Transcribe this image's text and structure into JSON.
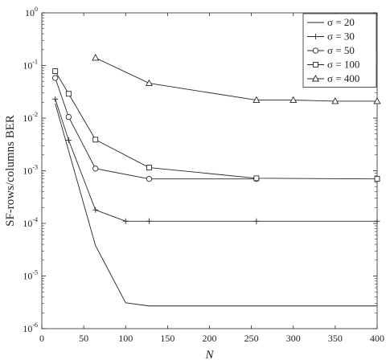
{
  "chart_data": {
    "type": "line",
    "title": "",
    "xlabel": "N",
    "ylabel": "SF-rows/columns BER",
    "xlim": [
      0,
      400
    ],
    "ylim": [
      1e-06,
      1
    ],
    "yscale": "log",
    "grid": false,
    "legend_position": "top-right",
    "x_ticks": [
      "0",
      "50",
      "100",
      "150",
      "200",
      "250",
      "300",
      "350",
      "400"
    ],
    "y_ticks": [
      {
        "base": "10",
        "exp": "0"
      },
      {
        "base": "10",
        "exp": "-1"
      },
      {
        "base": "10",
        "exp": "-2"
      },
      {
        "base": "10",
        "exp": "-3"
      },
      {
        "base": "10",
        "exp": "-4"
      },
      {
        "base": "10",
        "exp": "-5"
      },
      {
        "base": "10",
        "exp": "-6"
      }
    ],
    "series": [
      {
        "name": "σ = 20",
        "legend_label": "σ = 20",
        "marker": "none",
        "x": [
          16,
          64,
          100,
          128,
          256,
          400
        ],
        "y": [
          0.019,
          3.8e-05,
          3.1e-06,
          2.7e-06,
          2.7e-06,
          2.7e-06
        ]
      },
      {
        "name": "σ = 30",
        "legend_label": "σ = 30",
        "marker": "plus",
        "x": [
          16,
          32,
          64,
          100,
          128,
          256,
          400
        ],
        "y": [
          0.023,
          0.0038,
          0.00018,
          0.00011,
          0.00011,
          0.00011,
          0.00011
        ]
      },
      {
        "name": "σ = 50",
        "legend_label": "σ = 50",
        "marker": "circle",
        "x": [
          16,
          32,
          64,
          128,
          256
        ],
        "y": [
          0.058,
          0.0105,
          0.0011,
          0.0007,
          0.0007
        ]
      },
      {
        "name": "σ = 100",
        "legend_label": "σ = 100",
        "marker": "square",
        "x": [
          16,
          32,
          64,
          128,
          256,
          400
        ],
        "y": [
          0.078,
          0.029,
          0.0039,
          0.00115,
          0.00072,
          0.0007
        ]
      },
      {
        "name": "σ = 400",
        "legend_label": "σ = 400",
        "marker": "triangle",
        "x": [
          64,
          128,
          256,
          300,
          350,
          400
        ],
        "y": [
          0.14,
          0.046,
          0.022,
          0.022,
          0.021,
          0.021
        ]
      }
    ]
  }
}
